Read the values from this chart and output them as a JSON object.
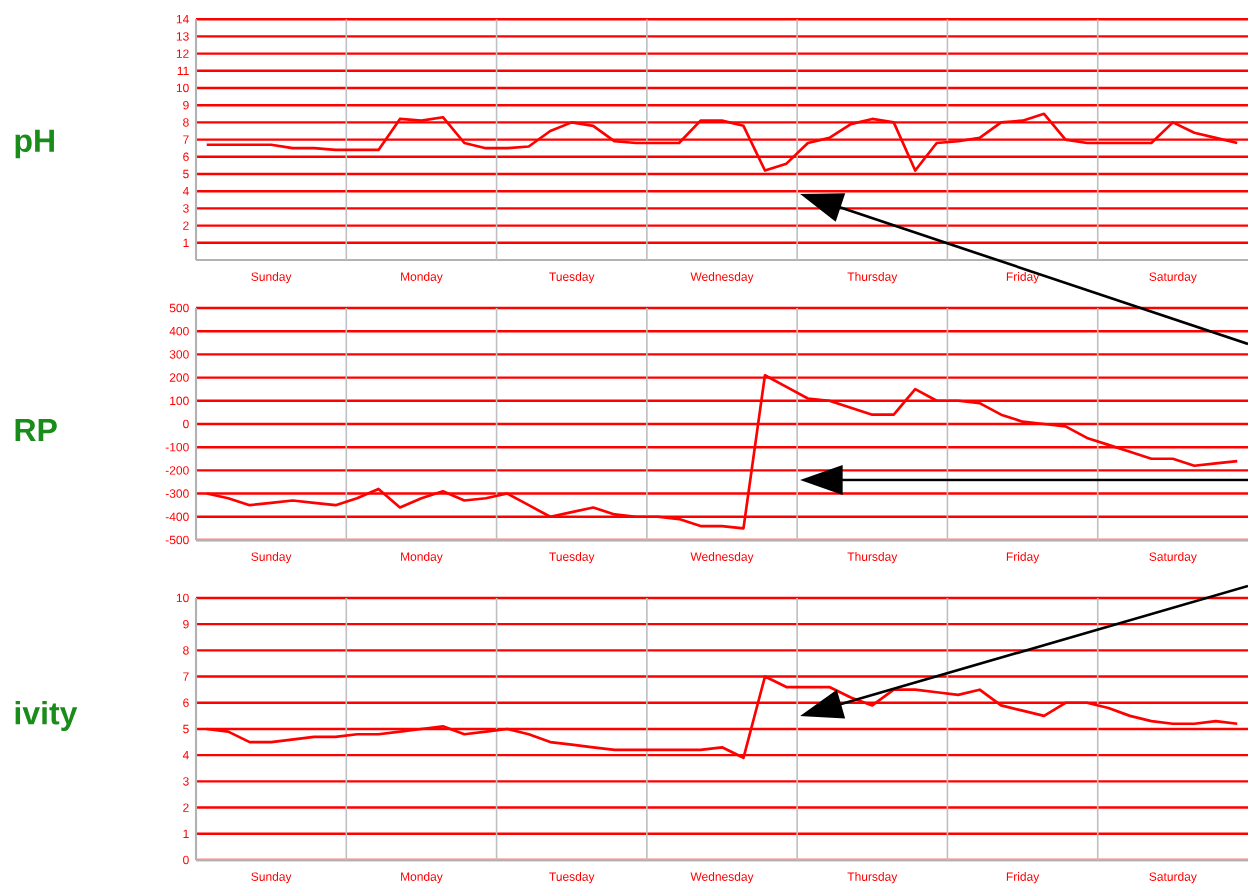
{
  "chart_data": [
    {
      "type": "line",
      "ylabel": "pH",
      "color": "#ff0000",
      "grid": true,
      "categories": [
        null,
        null,
        null,
        "Sunday",
        null,
        null,
        null,
        null,
        null,
        null,
        "Monday",
        null,
        null,
        null,
        null,
        null,
        null,
        "Tuesday",
        null,
        null,
        null,
        null,
        null,
        null,
        "Wednesday",
        null,
        null,
        null,
        null,
        null,
        null,
        "Thursday",
        null,
        null,
        null,
        null,
        null,
        null,
        "Friday",
        null,
        null,
        null,
        null,
        null,
        null,
        "Saturday",
        null,
        null,
        null
      ],
      "values": [
        6.7,
        6.7,
        6.7,
        6.7,
        6.5,
        6.5,
        6.4,
        6.4,
        6.4,
        8.2,
        8.1,
        8.3,
        6.8,
        6.5,
        6.5,
        6.6,
        7.5,
        8.0,
        7.8,
        6.9,
        6.8,
        6.8,
        6.8,
        8.1,
        8.1,
        7.8,
        5.2,
        5.6,
        6.8,
        7.1,
        7.9,
        8.2,
        8.0,
        5.2,
        6.8,
        6.9,
        7.1,
        8.0,
        8.1,
        8.5,
        7.0,
        6.8,
        6.8,
        6.8,
        6.8,
        8.0,
        7.4,
        7.1,
        6.8
      ],
      "ylim": [
        0,
        14
      ],
      "yticks": [
        1,
        2,
        3,
        4,
        5,
        6,
        7,
        8,
        9,
        10,
        11,
        12,
        13,
        14
      ]
    },
    {
      "type": "line",
      "ylabel": "RP",
      "color": "#ff0000",
      "grid": true,
      "categories": [
        null,
        null,
        null,
        "Sunday",
        null,
        null,
        null,
        null,
        null,
        null,
        "Monday",
        null,
        null,
        null,
        null,
        null,
        null,
        "Tuesday",
        null,
        null,
        null,
        null,
        null,
        null,
        "Wednesday",
        null,
        null,
        null,
        null,
        null,
        null,
        "Thursday",
        null,
        null,
        null,
        null,
        null,
        null,
        "Friday",
        null,
        null,
        null,
        null,
        null,
        null,
        "Saturday",
        null,
        null,
        null
      ],
      "values": [
        -300,
        -320,
        -350,
        -340,
        -330,
        -340,
        -350,
        -320,
        -280,
        -360,
        -320,
        -290,
        -330,
        -320,
        -300,
        -350,
        -400,
        -380,
        -360,
        -390,
        -400,
        -400,
        -410,
        -440,
        -440,
        -450,
        210,
        160,
        110,
        100,
        70,
        40,
        40,
        150,
        100,
        100,
        90,
        40,
        10,
        0,
        -10,
        -60,
        -90,
        -120,
        -150,
        -150,
        -180,
        -170,
        -160
      ],
      "ylim": [
        -500,
        500
      ],
      "yticks": [
        -500,
        -400,
        -300,
        -200,
        -100,
        0,
        100,
        200,
        300,
        400,
        500
      ]
    },
    {
      "type": "line",
      "ylabel": "ivity",
      "color": "#ff0000",
      "grid": true,
      "categories": [
        null,
        null,
        null,
        "Sunday",
        null,
        null,
        null,
        null,
        null,
        null,
        "Monday",
        null,
        null,
        null,
        null,
        null,
        null,
        "Tuesday",
        null,
        null,
        null,
        null,
        null,
        null,
        "Wednesday",
        null,
        null,
        null,
        null,
        null,
        null,
        "Thursday",
        null,
        null,
        null,
        null,
        null,
        null,
        "Friday",
        null,
        null,
        null,
        null,
        null,
        null,
        "Saturday",
        null,
        null,
        null
      ],
      "values": [
        5.0,
        4.9,
        4.5,
        4.5,
        4.6,
        4.7,
        4.7,
        4.8,
        4.8,
        4.9,
        5.0,
        5.1,
        4.8,
        4.9,
        5.0,
        4.8,
        4.5,
        4.4,
        4.3,
        4.2,
        4.2,
        4.2,
        4.2,
        4.2,
        4.3,
        3.9,
        7.0,
        6.6,
        6.6,
        6.6,
        6.2,
        5.9,
        6.5,
        6.5,
        6.4,
        6.3,
        6.5,
        5.9,
        5.7,
        5.5,
        6.0,
        6.0,
        5.8,
        5.5,
        5.3,
        5.2,
        5.2,
        5.3,
        5.2
      ],
      "ylim": [
        0,
        10
      ],
      "yticks": [
        0,
        1,
        2,
        3,
        4,
        5,
        6,
        7,
        8,
        9,
        10
      ]
    }
  ]
}
